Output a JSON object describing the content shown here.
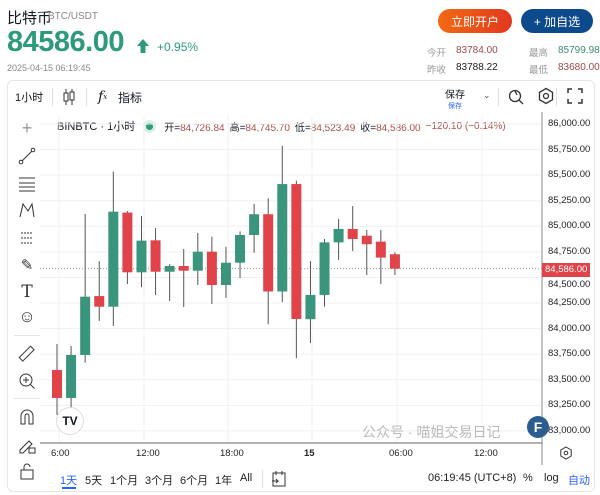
{
  "header": {
    "name": "比特币",
    "pair": "BTC/USDT",
    "price": "84586.00",
    "change": "+0.95%",
    "timestamp": "2025-04-15 06:19:45",
    "open_account": "立即开户",
    "add_watch": "+ 加自选",
    "stats": {
      "open_label": "今开",
      "open": "83784.00",
      "high_label": "最高",
      "high": "85799.98",
      "prev_close_label": "昨收",
      "prev_close": "83788.22",
      "low_label": "最低",
      "low": "83680.00"
    }
  },
  "toolbar": {
    "interval": "1小时",
    "indicators": "指标",
    "save": "保存",
    "save_sub": "保存"
  },
  "legend": {
    "symbol": "BINBTC · 1小时",
    "o_label": "开=",
    "o": "84,726.84",
    "h_label": "高=",
    "h": "84,745.70",
    "l_label": "低=",
    "l": "84,523.49",
    "c_label": "收=",
    "c": "84,586.00",
    "change": "−120.10 (−0.14%)"
  },
  "colors": {
    "up": "#3b957d",
    "down": "#e0434a",
    "accent": "#2e9a7c"
  },
  "chart_data": {
    "type": "candlestick",
    "ylim": [
      82950,
      86100
    ],
    "y_ticks": [
      "86,000.00",
      "85,750.00",
      "85,500.00",
      "85,250.00",
      "85,000.00",
      "84,750.00",
      "84,500.00",
      "84,250.00",
      "84,000.00",
      "83,750.00",
      "83,500.00",
      "83,250.00",
      "83,000.00"
    ],
    "y_tick_values": [
      86000,
      85750,
      85500,
      85250,
      85000,
      84750,
      84500,
      84250,
      84000,
      83750,
      83500,
      83250,
      83000
    ],
    "x_ticks": [
      "6:00",
      "12:00",
      "18:00",
      "15",
      "06:00",
      "12:00"
    ],
    "current_price_label": "84,586.00",
    "current_price": 84586,
    "candles": [
      {
        "o": 83595,
        "h": 83850,
        "l": 83155,
        "c": 83322
      },
      {
        "o": 83322,
        "h": 83830,
        "l": 83225,
        "c": 83742
      },
      {
        "o": 83742,
        "h": 85120,
        "l": 83667,
        "c": 84312
      },
      {
        "o": 84318,
        "h": 84660,
        "l": 84075,
        "c": 84214
      },
      {
        "o": 84214,
        "h": 85534,
        "l": 84026,
        "c": 85143
      },
      {
        "o": 85134,
        "h": 85150,
        "l": 84436,
        "c": 84550
      },
      {
        "o": 84550,
        "h": 85100,
        "l": 84404,
        "c": 84860
      },
      {
        "o": 84863,
        "h": 84983,
        "l": 84328,
        "c": 84556
      },
      {
        "o": 84556,
        "h": 84630,
        "l": 84270,
        "c": 84612
      },
      {
        "o": 84612,
        "h": 84778,
        "l": 84211,
        "c": 84566
      },
      {
        "o": 84566,
        "h": 84935,
        "l": 84426,
        "c": 84752
      },
      {
        "o": 84752,
        "h": 84899,
        "l": 84240,
        "c": 84426
      },
      {
        "o": 84426,
        "h": 84800,
        "l": 84300,
        "c": 84644
      },
      {
        "o": 84644,
        "h": 84950,
        "l": 84493,
        "c": 84915
      },
      {
        "o": 84915,
        "h": 85218,
        "l": 84742,
        "c": 85118
      },
      {
        "o": 85118,
        "h": 85274,
        "l": 84042,
        "c": 84363
      },
      {
        "o": 84363,
        "h": 85788,
        "l": 84259,
        "c": 85413
      },
      {
        "o": 85413,
        "h": 85446,
        "l": 83710,
        "c": 84094
      },
      {
        "o": 84092,
        "h": 84660,
        "l": 83859,
        "c": 84329
      },
      {
        "o": 84329,
        "h": 84876,
        "l": 84214,
        "c": 84843
      },
      {
        "o": 84843,
        "h": 85071,
        "l": 84671,
        "c": 84974
      },
      {
        "o": 84974,
        "h": 85198,
        "l": 84759,
        "c": 84876
      },
      {
        "o": 84908,
        "h": 84964,
        "l": 84524,
        "c": 84825
      },
      {
        "o": 84850,
        "h": 84964,
        "l": 84436,
        "c": 84694
      },
      {
        "o": 84726.84,
        "h": 84745.7,
        "l": 84523.49,
        "c": 84586.0
      }
    ]
  },
  "bottom": {
    "ranges": [
      "1天",
      "5天",
      "1个月",
      "3个月",
      "6个月",
      "1年",
      "All"
    ],
    "time": "06:19:45 (UTC+8)",
    "pct": "%",
    "log": "log",
    "auto": "自动",
    "watermark": "公众号 · 喵姐交易日记"
  }
}
